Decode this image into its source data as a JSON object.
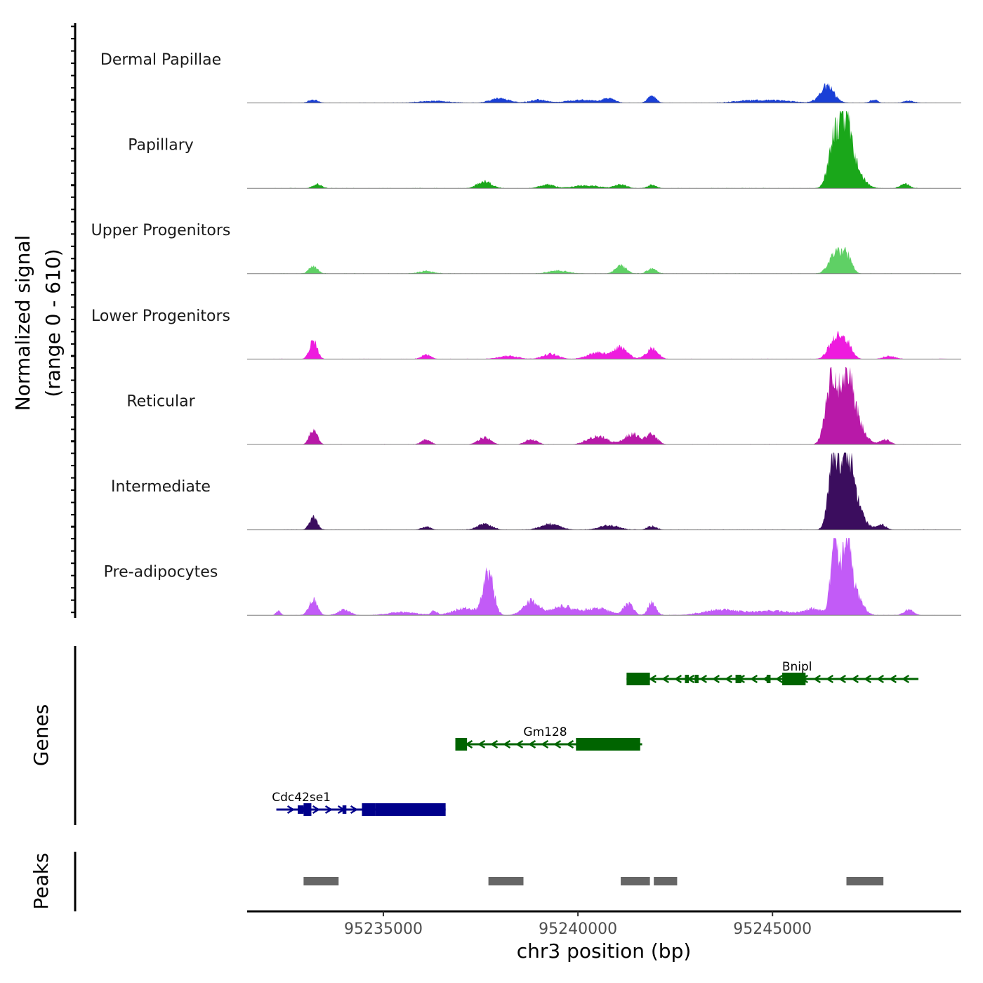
{
  "chart_data": {
    "type": "area",
    "chromosome": "chr3",
    "xlabel": "chr3 position (bp)",
    "xlim": [
      95231500,
      95249850
    ],
    "x_ticks": [
      95235000,
      95240000,
      95245000
    ],
    "x_tick_labels": [
      "95235000",
      "95240000",
      "95245000"
    ],
    "coverage": {
      "ylabel_line1": "Normalized signal",
      "ylabel_line2": "(range 0 - 610)",
      "ylim": [
        0,
        610
      ],
      "series": [
        {
          "name": "Dermal Papillae",
          "color": "#1a3fd6",
          "peaks": [
            [
              95233200,
              25,
              120
            ],
            [
              95236300,
              15,
              400
            ],
            [
              95238000,
              35,
              250
            ],
            [
              95239000,
              25,
              200
            ],
            [
              95240100,
              22,
              400
            ],
            [
              95240800,
              35,
              150
            ],
            [
              95241900,
              55,
              110
            ],
            [
              95244400,
              18,
              400
            ],
            [
              95245200,
              18,
              400
            ],
            [
              95246400,
              130,
              180
            ],
            [
              95247600,
              25,
              100
            ],
            [
              95248500,
              18,
              130
            ]
          ]
        },
        {
          "name": "Papillary",
          "color": "#1aa71a",
          "peaks": [
            [
              95233300,
              35,
              110
            ],
            [
              95237600,
              55,
              180
            ],
            [
              95239200,
              30,
              180
            ],
            [
              95240200,
              22,
              350
            ],
            [
              95241100,
              30,
              150
            ],
            [
              95241900,
              25,
              120
            ],
            [
              95246600,
              380,
              150
            ],
            [
              95246900,
              360,
              130
            ],
            [
              95247000,
              200,
              250
            ],
            [
              95248400,
              35,
              120
            ]
          ]
        },
        {
          "name": "Upper Progenitors",
          "color": "#5fd065",
          "peaks": [
            [
              95233200,
              60,
              110
            ],
            [
              95236100,
              20,
              200
            ],
            [
              95239500,
              25,
              250
            ],
            [
              95241100,
              65,
              140
            ],
            [
              95241900,
              40,
              120
            ],
            [
              95246600,
              150,
              160
            ],
            [
              95246900,
              140,
              130
            ]
          ]
        },
        {
          "name": "Lower Progenitors",
          "color": "#ee1bde",
          "peaks": [
            [
              95233200,
              150,
              100
            ],
            [
              95236100,
              35,
              120
            ],
            [
              95238200,
              25,
              250
            ],
            [
              95239300,
              40,
              200
            ],
            [
              95240500,
              50,
              250
            ],
            [
              95241100,
              90,
              180
            ],
            [
              95241900,
              80,
              150
            ],
            [
              95246600,
              160,
              160
            ],
            [
              95246900,
              130,
              140
            ],
            [
              95248000,
              25,
              150
            ]
          ]
        },
        {
          "name": "Reticular",
          "color": "#b819a8",
          "peaks": [
            [
              95233200,
              120,
              100
            ],
            [
              95236100,
              40,
              120
            ],
            [
              95237600,
              55,
              160
            ],
            [
              95238800,
              40,
              150
            ],
            [
              95240500,
              65,
              250
            ],
            [
              95241400,
              80,
              200
            ],
            [
              95241900,
              80,
              140
            ],
            [
              95246500,
              480,
              140
            ],
            [
              95246900,
              330,
              170
            ],
            [
              95247000,
              250,
              260
            ],
            [
              95247900,
              40,
              120
            ]
          ]
        },
        {
          "name": "Intermediate",
          "color": "#3b0d5e",
          "peaks": [
            [
              95233200,
              100,
              100
            ],
            [
              95236100,
              25,
              120
            ],
            [
              95237600,
              50,
              180
            ],
            [
              95239300,
              45,
              250
            ],
            [
              95240800,
              35,
              250
            ],
            [
              95241900,
              30,
              120
            ],
            [
              95246550,
              540,
              120
            ],
            [
              95246900,
              420,
              160
            ],
            [
              95247000,
              250,
              250
            ],
            [
              95247800,
              40,
              120
            ]
          ]
        },
        {
          "name": "Pre-adipocytes",
          "color": "#c25bf7",
          "peaks": [
            [
              95232300,
              35,
              60
            ],
            [
              95233200,
              120,
              110
            ],
            [
              95234000,
              45,
              150
            ],
            [
              95235500,
              25,
              350
            ],
            [
              95236300,
              30,
              80
            ],
            [
              95237100,
              55,
              300
            ],
            [
              95237700,
              330,
              130
            ],
            [
              95238800,
              110,
              200
            ],
            [
              95239600,
              70,
              300
            ],
            [
              95240500,
              55,
              300
            ],
            [
              95241300,
              90,
              120
            ],
            [
              95241900,
              100,
              100
            ],
            [
              95243700,
              45,
              450
            ],
            [
              95245000,
              35,
              450
            ],
            [
              95246050,
              50,
              250
            ],
            [
              95246600,
              600,
              100
            ],
            [
              95246900,
              580,
              100
            ],
            [
              95247100,
              200,
              180
            ],
            [
              95248500,
              45,
              120
            ]
          ]
        }
      ]
    },
    "genes": {
      "ylabel": "Genes",
      "items": [
        {
          "name": "Bnipl",
          "strand": "-",
          "color": "#006400",
          "start": 95241250,
          "end": 95248750,
          "exons": [
            [
              95241250,
              95241850,
              "wide"
            ],
            [
              95242750,
              95242850,
              "narrow"
            ],
            [
              95243000,
              95243100,
              "narrow"
            ],
            [
              95244050,
              95244200,
              "narrow"
            ],
            [
              95244850,
              95244950,
              "narrow"
            ],
            [
              95245250,
              95245850,
              "wide"
            ]
          ]
        },
        {
          "name": "Gm128",
          "strand": "-",
          "color": "#006400",
          "start": 95236850,
          "end": 95241650,
          "exons": [
            [
              95236850,
              95237150,
              "wide"
            ],
            [
              95239950,
              95241600,
              "wide"
            ]
          ]
        },
        {
          "name": "Cdc42se1",
          "strand": "+",
          "color": "#00008b",
          "start": 95232250,
          "end": 95236600,
          "exons": [
            [
              95232800,
              95232950,
              "narrow"
            ],
            [
              95232950,
              95233150,
              "wide"
            ],
            [
              95233950,
              95234050,
              "narrow"
            ],
            [
              95234450,
              95234800,
              "wide"
            ],
            [
              95234800,
              95236600,
              "wide"
            ]
          ]
        }
      ]
    },
    "peaks": {
      "ylabel": "Peaks",
      "color": "#666666",
      "intervals": [
        [
          95232950,
          95233850
        ],
        [
          95237700,
          95238600
        ],
        [
          95241100,
          95241850
        ],
        [
          95241950,
          95242550
        ],
        [
          95246900,
          95247850
        ]
      ]
    }
  }
}
